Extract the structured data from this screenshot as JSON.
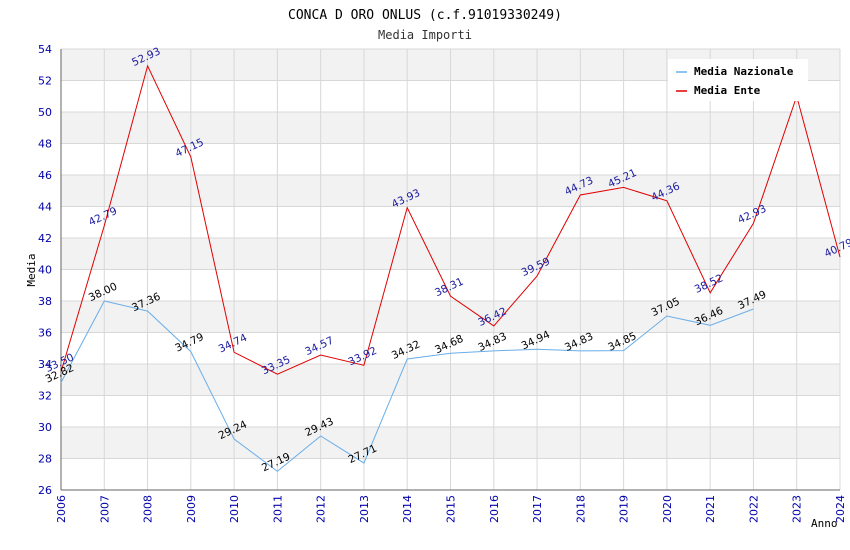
{
  "chart_data": {
    "type": "line",
    "title": "CONCA D ORO ONLUS (c.f.91019330249)",
    "subtitle": "Media Importi",
    "xlabel": "Anno",
    "ylabel": "Media",
    "ylim": [
      26,
      54
    ],
    "y_ticks": [
      26,
      28,
      30,
      32,
      34,
      36,
      38,
      40,
      42,
      44,
      46,
      48,
      50,
      52,
      54
    ],
    "categories": [
      "2006",
      "2007",
      "2008",
      "2009",
      "2010",
      "2011",
      "2012",
      "2013",
      "2014",
      "2015",
      "2016",
      "2017",
      "2018",
      "2019",
      "2020",
      "2021",
      "2022",
      "2023",
      "2024"
    ],
    "legend_position": "top-right",
    "series": [
      {
        "name": "Media Nazionale",
        "color": "#6aaee8",
        "label_color": "#000000",
        "values": [
          32.82,
          38.0,
          37.36,
          34.79,
          29.24,
          27.19,
          29.43,
          27.71,
          34.32,
          34.68,
          34.83,
          34.94,
          34.83,
          34.85,
          37.05,
          36.46,
          37.49,
          null,
          null
        ],
        "labels": [
          "32.82",
          "38.00",
          "37.36",
          "34.79",
          "29.24",
          "27.19",
          "29.43",
          "27.71",
          "34.32",
          "34.68",
          "34.83",
          "34.94",
          "34.83",
          "34.85",
          "37.05",
          "36.46",
          "37.49",
          null,
          null
        ]
      },
      {
        "name": "Media Ente",
        "color": "#e00000",
        "label_color": "#1a1aa0",
        "values": [
          33.5,
          42.79,
          52.93,
          47.15,
          34.74,
          33.35,
          34.57,
          33.92,
          43.93,
          38.31,
          36.42,
          39.59,
          44.73,
          45.21,
          44.36,
          38.52,
          42.93,
          51.0,
          40.79
        ],
        "labels": [
          "33.50",
          "42.79",
          "52.93",
          "47.15",
          "34.74",
          "33.35",
          "34.57",
          "33.92",
          "43.93",
          "38.31",
          "36.42",
          "39.59",
          "44.73",
          "45.21",
          "44.36",
          "38.52",
          "42.93",
          null,
          "40.79"
        ]
      }
    ]
  }
}
